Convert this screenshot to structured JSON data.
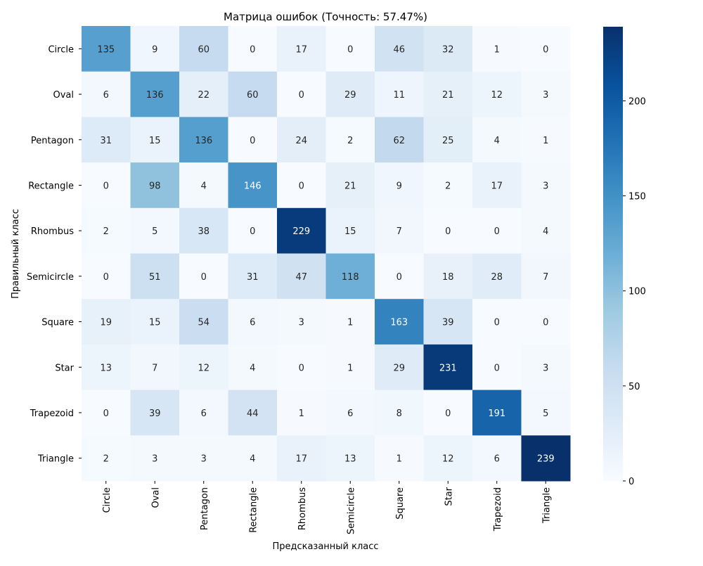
{
  "chart_data": {
    "type": "heatmap",
    "title": "Матрица ошибок (Точность: 57.47%)",
    "xlabel": "Предсказанный класс",
    "ylabel": "Правильный класс",
    "x_categories": [
      "Circle",
      "Oval",
      "Pentagon",
      "Rectangle",
      "Rhombus",
      "Semicircle",
      "Square",
      "Star",
      "Trapezoid",
      "Triangle"
    ],
    "y_categories": [
      "Circle",
      "Oval",
      "Pentagon",
      "Rectangle",
      "Rhombus",
      "Semicircle",
      "Square",
      "Star",
      "Trapezoid",
      "Triangle"
    ],
    "values": [
      [
        135,
        9,
        60,
        0,
        17,
        0,
        46,
        32,
        1,
        0
      ],
      [
        6,
        136,
        22,
        60,
        0,
        29,
        11,
        21,
        12,
        3
      ],
      [
        31,
        15,
        136,
        0,
        24,
        2,
        62,
        25,
        4,
        1
      ],
      [
        0,
        98,
        4,
        146,
        0,
        21,
        9,
        2,
        17,
        3
      ],
      [
        2,
        5,
        38,
        0,
        229,
        15,
        7,
        0,
        0,
        4
      ],
      [
        0,
        51,
        0,
        31,
        47,
        118,
        0,
        18,
        28,
        7
      ],
      [
        19,
        15,
        54,
        6,
        3,
        1,
        163,
        39,
        0,
        0
      ],
      [
        13,
        7,
        12,
        4,
        0,
        1,
        29,
        231,
        0,
        3
      ],
      [
        0,
        39,
        6,
        44,
        1,
        6,
        8,
        0,
        191,
        5
      ],
      [
        2,
        3,
        3,
        4,
        17,
        13,
        1,
        12,
        6,
        239
      ]
    ],
    "colormap": "Blues",
    "colorbar": {
      "range": [
        0,
        239
      ],
      "ticks": [
        0,
        50,
        100,
        150,
        200
      ]
    },
    "annotations": true,
    "grid": false
  }
}
